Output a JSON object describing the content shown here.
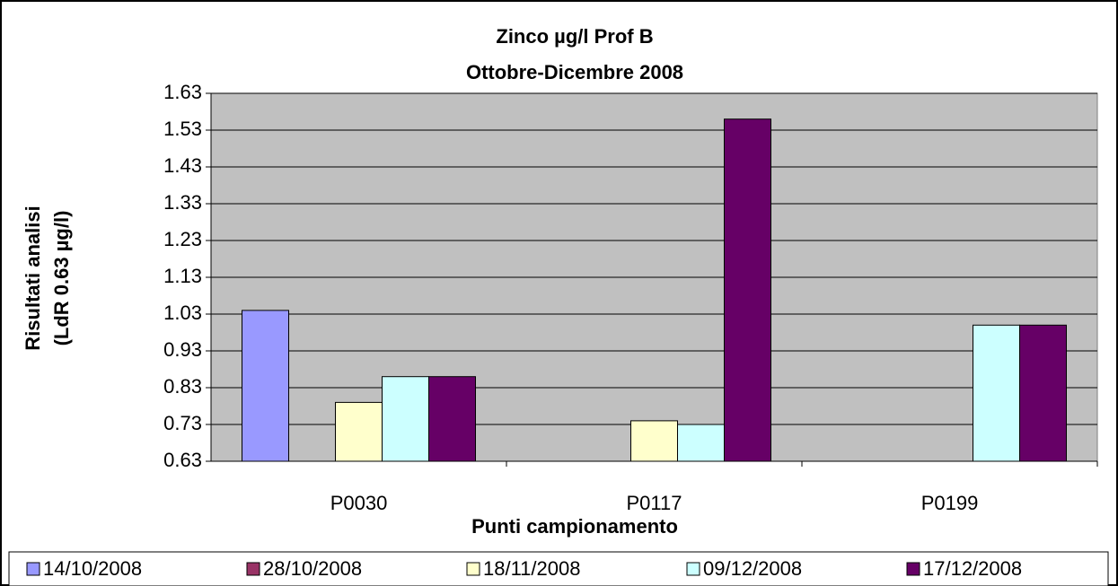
{
  "chart_data": {
    "type": "bar",
    "title": "Zinco µg/l Prof B",
    "subtitle": "Ottobre-Dicembre 2008",
    "y_label": [
      "Risultati analisi",
      "(LdR 0.63 µg/l)"
    ],
    "x_label": "Punti campionamento",
    "categories": [
      "P0030",
      "P0117",
      "P0199"
    ],
    "series": [
      {
        "name": "14/10/2008",
        "color": "#9999ff",
        "values": [
          1.04,
          null,
          null
        ]
      },
      {
        "name": "28/10/2008",
        "color": "#993366",
        "values": [
          null,
          null,
          null
        ]
      },
      {
        "name": "18/11/2008",
        "color": "#ffffcc",
        "values": [
          0.79,
          0.74,
          null
        ]
      },
      {
        "name": "09/12/2008",
        "color": "#ccffff",
        "values": [
          0.86,
          0.73,
          1.0
        ]
      },
      {
        "name": "17/12/2008",
        "color": "#660066",
        "values": [
          0.86,
          1.56,
          1.0
        ]
      }
    ],
    "ylim": [
      0.63,
      1.63
    ],
    "yticks": [
      0.63,
      0.73,
      0.83,
      0.93,
      1.03,
      1.13,
      1.23,
      1.33,
      1.43,
      1.53,
      1.63
    ],
    "grid": true,
    "legend": "bottom"
  }
}
